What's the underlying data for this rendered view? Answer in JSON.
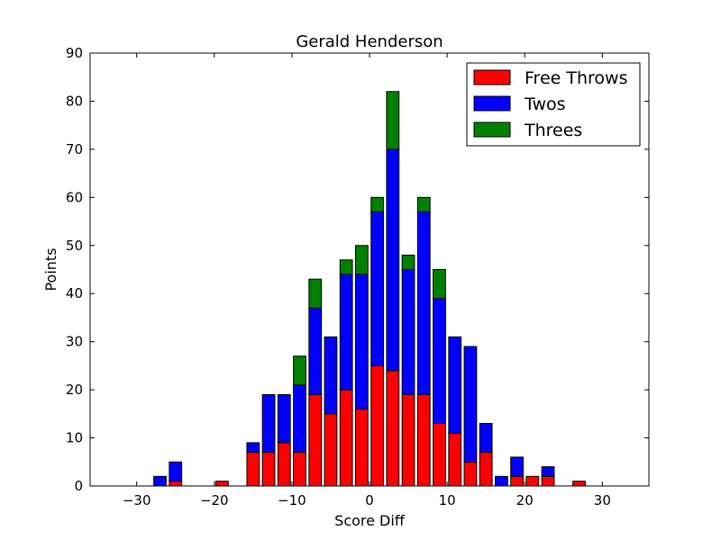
{
  "chart_data": {
    "type": "bar",
    "stacked": true,
    "title": "Gerald Henderson",
    "xlabel": "Score Diff",
    "ylabel": "Points",
    "xlim": [
      -36,
      36
    ],
    "ylim": [
      0,
      90
    ],
    "xticks": [
      -30,
      -20,
      -10,
      0,
      10,
      20,
      30
    ],
    "xtick_labels": [
      "−30",
      "−20",
      "−10",
      "0",
      "10",
      "20",
      "30"
    ],
    "yticks": [
      0,
      10,
      20,
      30,
      40,
      50,
      60,
      70,
      80,
      90
    ],
    "ytick_labels": [
      "0",
      "10",
      "20",
      "30",
      "40",
      "50",
      "60",
      "70",
      "80",
      "90"
    ],
    "bar_width": 1.6,
    "x": [
      -35,
      -33,
      -31,
      -29,
      -27,
      -25,
      -23,
      -21,
      -19,
      -17,
      -15,
      -13,
      -11,
      -9,
      -7,
      -5,
      -3,
      -1,
      1,
      3,
      5,
      7,
      9,
      11,
      13,
      15,
      17,
      19,
      21,
      23,
      25,
      27,
      29,
      31,
      33,
      35
    ],
    "series": [
      {
        "name": "Free Throws",
        "color": "#ff0000",
        "values": [
          0,
          0,
          0,
          0,
          0,
          1,
          0,
          0,
          1,
          0,
          7,
          7,
          9,
          7,
          19,
          15,
          20,
          16,
          25,
          24,
          19,
          19,
          13,
          11,
          5,
          7,
          0,
          2,
          2,
          2,
          0,
          1,
          0,
          0,
          0,
          0
        ]
      },
      {
        "name": "Twos",
        "color": "#0000ff",
        "values": [
          0,
          0,
          0,
          0,
          2,
          4,
          0,
          0,
          0,
          0,
          2,
          12,
          10,
          14,
          18,
          16,
          24,
          28,
          32,
          46,
          26,
          38,
          26,
          20,
          24,
          6,
          2,
          4,
          0,
          2,
          0,
          0,
          0,
          0,
          0,
          0
        ]
      },
      {
        "name": "Threes",
        "color": "#008000",
        "values": [
          0,
          0,
          0,
          0,
          0,
          0,
          0,
          0,
          0,
          0,
          0,
          0,
          0,
          6,
          6,
          0,
          3,
          6,
          3,
          12,
          3,
          3,
          6,
          0,
          0,
          0,
          0,
          0,
          0,
          0,
          0,
          0,
          0,
          0,
          0,
          0
        ]
      }
    ],
    "legend_position": "top-right",
    "grid": false
  }
}
